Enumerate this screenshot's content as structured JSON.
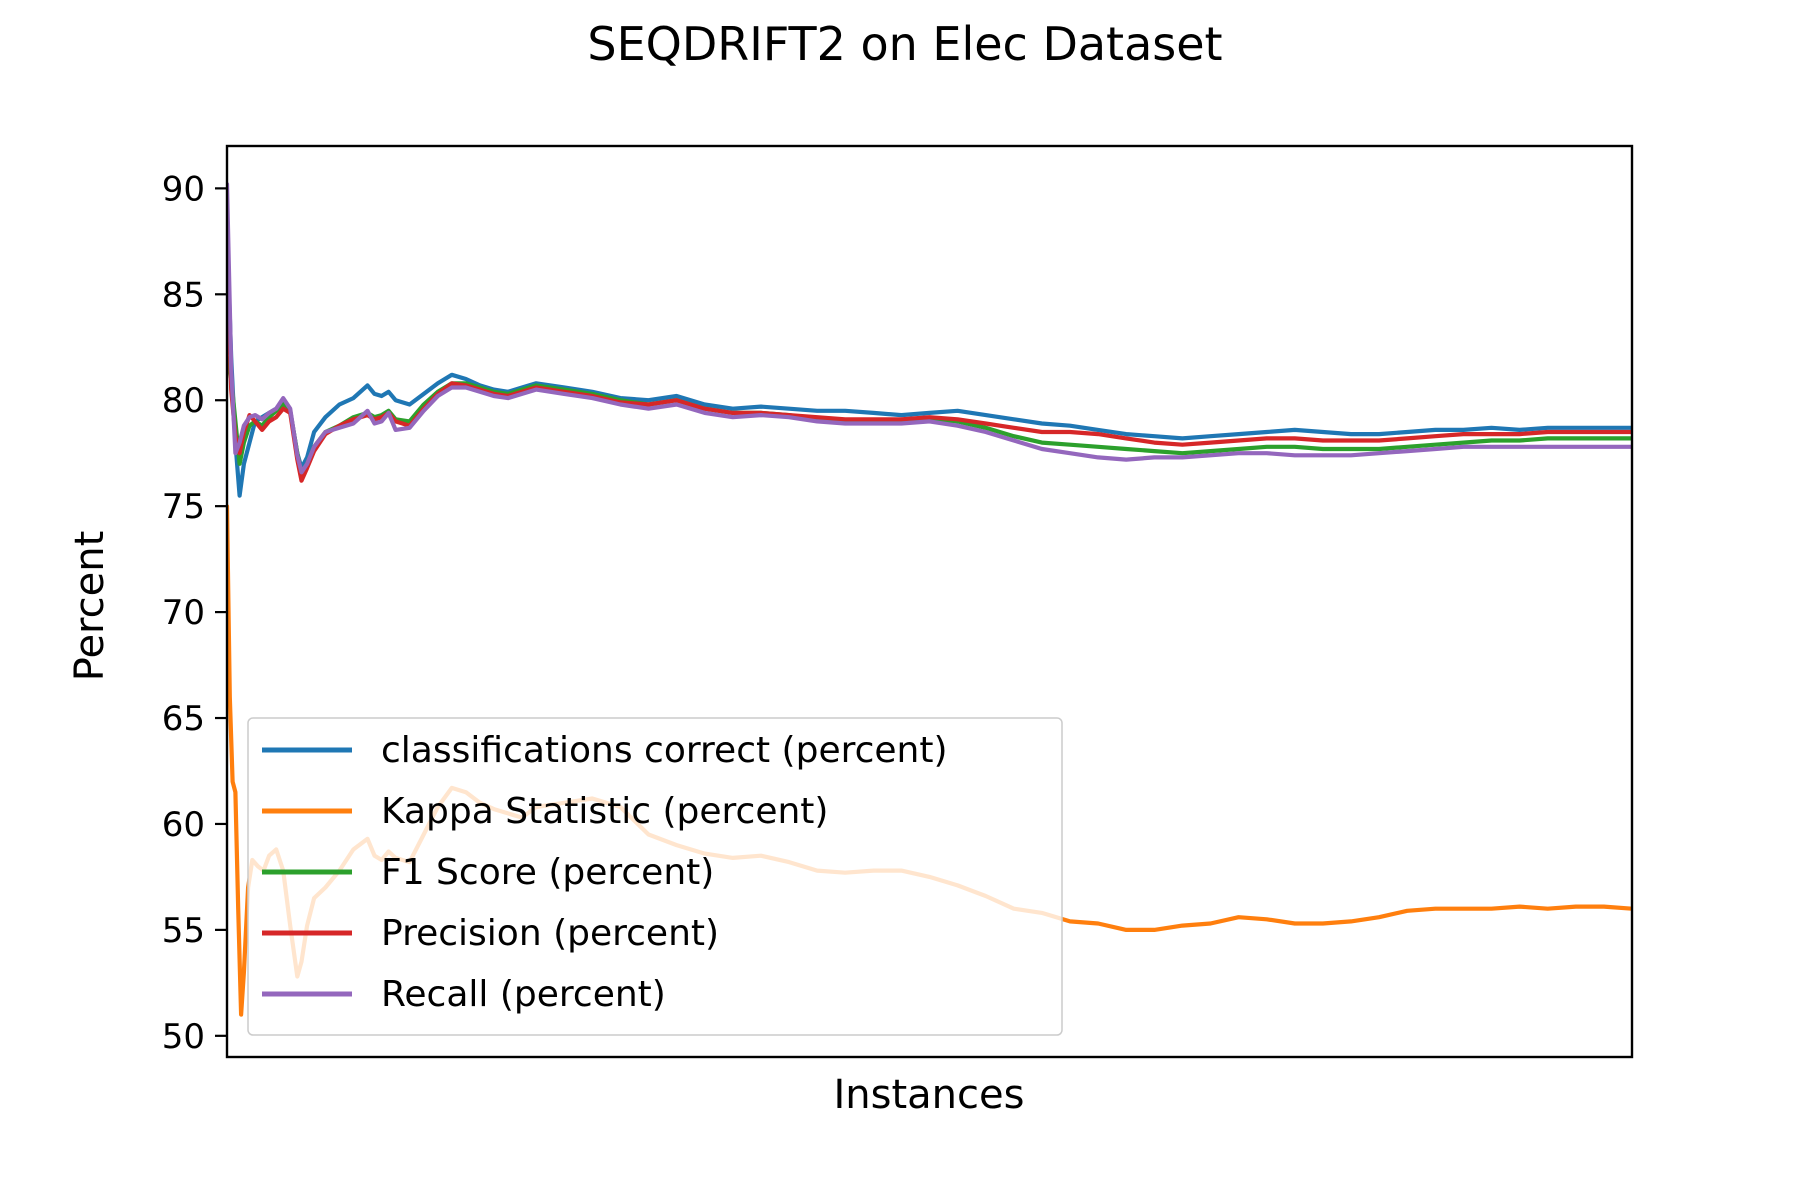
{
  "chart_data": {
    "type": "line",
    "title": "SEQDRIFT2 on Elec Dataset",
    "xlabel": "Instances",
    "ylabel": "Percent",
    "ylim": [
      49,
      92
    ],
    "xlim": [
      0,
      100
    ],
    "yticks": [
      50,
      55,
      60,
      65,
      70,
      75,
      80,
      85,
      90
    ],
    "xticks": [],
    "grid": false,
    "legend": {
      "placement": "lower-left"
    },
    "series": [
      {
        "name": "classifications correct (percent)",
        "color": "#1f77b4",
        "x": [
          0,
          0.3,
          0.6,
          0.9,
          1.2,
          1.6,
          2.0,
          2.5,
          3.0,
          3.5,
          4.0,
          4.5,
          5.0,
          5.3,
          5.7,
          6.2,
          7,
          8,
          9,
          10,
          10.5,
          11,
          11.5,
          12,
          13,
          14,
          15,
          16,
          17,
          18,
          19,
          20,
          21,
          22,
          24,
          26,
          28,
          30,
          32,
          34,
          36,
          38,
          40,
          42,
          44,
          46,
          48,
          50,
          52,
          54,
          56,
          58,
          60,
          62,
          64,
          66,
          68,
          70,
          72,
          74,
          76,
          78,
          80,
          82,
          84,
          86,
          88,
          90,
          92,
          94,
          96,
          98,
          100
        ],
        "y": [
          88,
          82,
          78,
          75.5,
          77,
          78,
          79,
          79.2,
          79.4,
          79.6,
          80,
          79.5,
          77.5,
          76.8,
          77.3,
          78.5,
          79.2,
          79.8,
          80.1,
          80.7,
          80.3,
          80.2,
          80.4,
          80.0,
          79.8,
          80.3,
          80.8,
          81.2,
          81.0,
          80.7,
          80.5,
          80.4,
          80.6,
          80.8,
          80.6,
          80.4,
          80.1,
          80.0,
          80.2,
          79.8,
          79.6,
          79.7,
          79.6,
          79.5,
          79.5,
          79.4,
          79.3,
          79.4,
          79.5,
          79.3,
          79.1,
          78.9,
          78.8,
          78.6,
          78.4,
          78.3,
          78.2,
          78.3,
          78.4,
          78.5,
          78.6,
          78.5,
          78.4,
          78.4,
          78.5,
          78.6,
          78.6,
          78.7,
          78.6,
          78.7,
          78.7,
          78.7,
          78.7
        ]
      },
      {
        "name": "Kappa Statistic (percent)",
        "color": "#ff7f0e",
        "x": [
          0,
          0.2,
          0.4,
          0.6,
          0.8,
          1.0,
          1.2,
          1.5,
          1.8,
          2.2,
          2.6,
          3.0,
          3.5,
          4.0,
          4.5,
          5.0,
          5.3,
          5.7,
          6.2,
          7,
          8,
          9,
          10,
          10.5,
          11,
          11.5,
          12,
          13,
          14,
          15,
          16,
          17,
          18,
          19,
          20,
          21,
          22,
          24,
          26,
          28,
          30,
          32,
          34,
          36,
          38,
          40,
          42,
          44,
          46,
          48,
          50,
          52,
          54,
          56,
          58,
          60,
          62,
          64,
          66,
          68,
          70,
          72,
          74,
          76,
          78,
          80,
          82,
          84,
          86,
          88,
          90,
          92,
          94,
          96,
          98,
          100
        ],
        "y": [
          75,
          66,
          62,
          61.5,
          56,
          51,
          53,
          57,
          58.3,
          58,
          57.8,
          58.5,
          58.8,
          57.8,
          55.2,
          52.8,
          53.5,
          55.2,
          56.5,
          57.0,
          57.8,
          58.8,
          59.3,
          58.5,
          58.3,
          58.7,
          58.4,
          58.2,
          59.5,
          60.8,
          61.7,
          61.5,
          61.0,
          60.7,
          60.5,
          60.3,
          60.8,
          61.0,
          61.2,
          60.8,
          59.5,
          59.0,
          58.6,
          58.4,
          58.5,
          58.2,
          57.8,
          57.7,
          57.8,
          57.8,
          57.5,
          57.1,
          56.6,
          56.0,
          55.8,
          55.4,
          55.3,
          55.0,
          55.0,
          55.2,
          55.3,
          55.6,
          55.5,
          55.3,
          55.3,
          55.4,
          55.6,
          55.9,
          56.0,
          56.0,
          56.0,
          56.1,
          56.0,
          56.1,
          56.1,
          56.0
        ]
      },
      {
        "name": "F1 Score (percent)",
        "color": "#2ca02c",
        "x": [
          0,
          0.3,
          0.6,
          0.9,
          1.2,
          1.6,
          2.0,
          2.5,
          3.0,
          3.5,
          4.0,
          4.5,
          5.0,
          5.3,
          5.7,
          6.2,
          7,
          8,
          9,
          10,
          10.5,
          11,
          11.5,
          12,
          13,
          14,
          15,
          16,
          17,
          18,
          19,
          20,
          21,
          22,
          24,
          26,
          28,
          30,
          32,
          34,
          36,
          38,
          40,
          42,
          44,
          46,
          48,
          50,
          52,
          54,
          56,
          58,
          60,
          62,
          64,
          66,
          68,
          70,
          72,
          74,
          76,
          78,
          80,
          82,
          84,
          86,
          88,
          90,
          92,
          94,
          96,
          98,
          100
        ],
        "y": [
          82,
          81,
          79,
          77,
          78,
          78.8,
          79,
          78.8,
          79.2,
          79.5,
          79.8,
          79.5,
          77.5,
          76.5,
          77.0,
          77.8,
          78.5,
          78.8,
          79.2,
          79.4,
          79.2,
          79.3,
          79.5,
          79.1,
          79.0,
          79.8,
          80.4,
          80.8,
          80.8,
          80.6,
          80.4,
          80.3,
          80.5,
          80.7,
          80.5,
          80.3,
          80.0,
          79.8,
          80.0,
          79.6,
          79.4,
          79.4,
          79.3,
          79.1,
          79.0,
          79.0,
          79.0,
          79.1,
          79.0,
          78.7,
          78.3,
          78.0,
          77.9,
          77.8,
          77.7,
          77.6,
          77.5,
          77.6,
          77.7,
          77.8,
          77.8,
          77.7,
          77.7,
          77.7,
          77.8,
          77.9,
          78.0,
          78.1,
          78.1,
          78.2,
          78.2,
          78.2,
          78.2
        ]
      },
      {
        "name": "Precision (percent)",
        "color": "#d62728",
        "x": [
          0,
          0.3,
          0.6,
          0.9,
          1.2,
          1.6,
          2.0,
          2.5,
          3.0,
          3.5,
          4.0,
          4.5,
          5.0,
          5.3,
          5.7,
          6.2,
          7,
          8,
          9,
          10,
          10.5,
          11,
          11.5,
          12,
          13,
          14,
          15,
          16,
          17,
          18,
          19,
          20,
          21,
          22,
          24,
          26,
          28,
          30,
          32,
          34,
          36,
          38,
          40,
          42,
          44,
          46,
          48,
          50,
          52,
          54,
          56,
          58,
          60,
          62,
          64,
          66,
          68,
          70,
          72,
          74,
          76,
          78,
          80,
          82,
          84,
          86,
          88,
          90,
          92,
          94,
          96,
          98,
          100
        ],
        "y": [
          87,
          80.5,
          78.3,
          77.5,
          78.5,
          79.3,
          79.0,
          78.6,
          79.0,
          79.2,
          79.6,
          79.4,
          77.2,
          76.2,
          76.8,
          77.6,
          78.4,
          78.8,
          79.1,
          79.3,
          79.1,
          79.2,
          79.4,
          79.0,
          78.8,
          79.6,
          80.3,
          80.8,
          80.7,
          80.5,
          80.3,
          80.2,
          80.4,
          80.6,
          80.4,
          80.2,
          79.9,
          79.8,
          80.0,
          79.6,
          79.4,
          79.4,
          79.3,
          79.2,
          79.1,
          79.1,
          79.1,
          79.2,
          79.1,
          78.9,
          78.7,
          78.5,
          78.5,
          78.4,
          78.2,
          78.0,
          77.9,
          78.0,
          78.1,
          78.2,
          78.2,
          78.1,
          78.1,
          78.1,
          78.2,
          78.3,
          78.4,
          78.4,
          78.4,
          78.5,
          78.5,
          78.5,
          78.5
        ]
      },
      {
        "name": "Recall (percent)",
        "color": "#9467bd",
        "x": [
          0,
          0.3,
          0.6,
          0.9,
          1.2,
          1.6,
          2.0,
          2.5,
          3.0,
          3.5,
          4.0,
          4.5,
          5.0,
          5.3,
          5.7,
          6.2,
          7,
          8,
          9,
          10,
          10.5,
          11,
          11.5,
          12,
          13,
          14,
          15,
          16,
          17,
          18,
          19,
          20,
          21,
          22,
          24,
          26,
          28,
          30,
          32,
          34,
          36,
          38,
          40,
          42,
          44,
          46,
          48,
          50,
          52,
          54,
          56,
          58,
          60,
          62,
          64,
          66,
          68,
          70,
          72,
          74,
          76,
          78,
          80,
          82,
          84,
          86,
          88,
          90,
          92,
          94,
          96,
          98,
          100
        ],
        "y": [
          90.2,
          81.5,
          77.5,
          78,
          78.8,
          79.2,
          79.3,
          79.1,
          79.4,
          79.6,
          80.1,
          79.6,
          77.4,
          76.6,
          77.0,
          77.8,
          78.5,
          78.7,
          78.9,
          79.5,
          78.9,
          79.0,
          79.4,
          78.6,
          78.7,
          79.5,
          80.2,
          80.6,
          80.6,
          80.4,
          80.2,
          80.1,
          80.3,
          80.5,
          80.3,
          80.1,
          79.8,
          79.6,
          79.8,
          79.4,
          79.2,
          79.3,
          79.2,
          79.0,
          78.9,
          78.9,
          78.9,
          79.0,
          78.8,
          78.5,
          78.1,
          77.7,
          77.5,
          77.3,
          77.2,
          77.3,
          77.3,
          77.4,
          77.5,
          77.5,
          77.4,
          77.4,
          77.4,
          77.5,
          77.6,
          77.7,
          77.8,
          77.8,
          77.8,
          77.8,
          77.8,
          77.8,
          77.8
        ]
      }
    ]
  }
}
